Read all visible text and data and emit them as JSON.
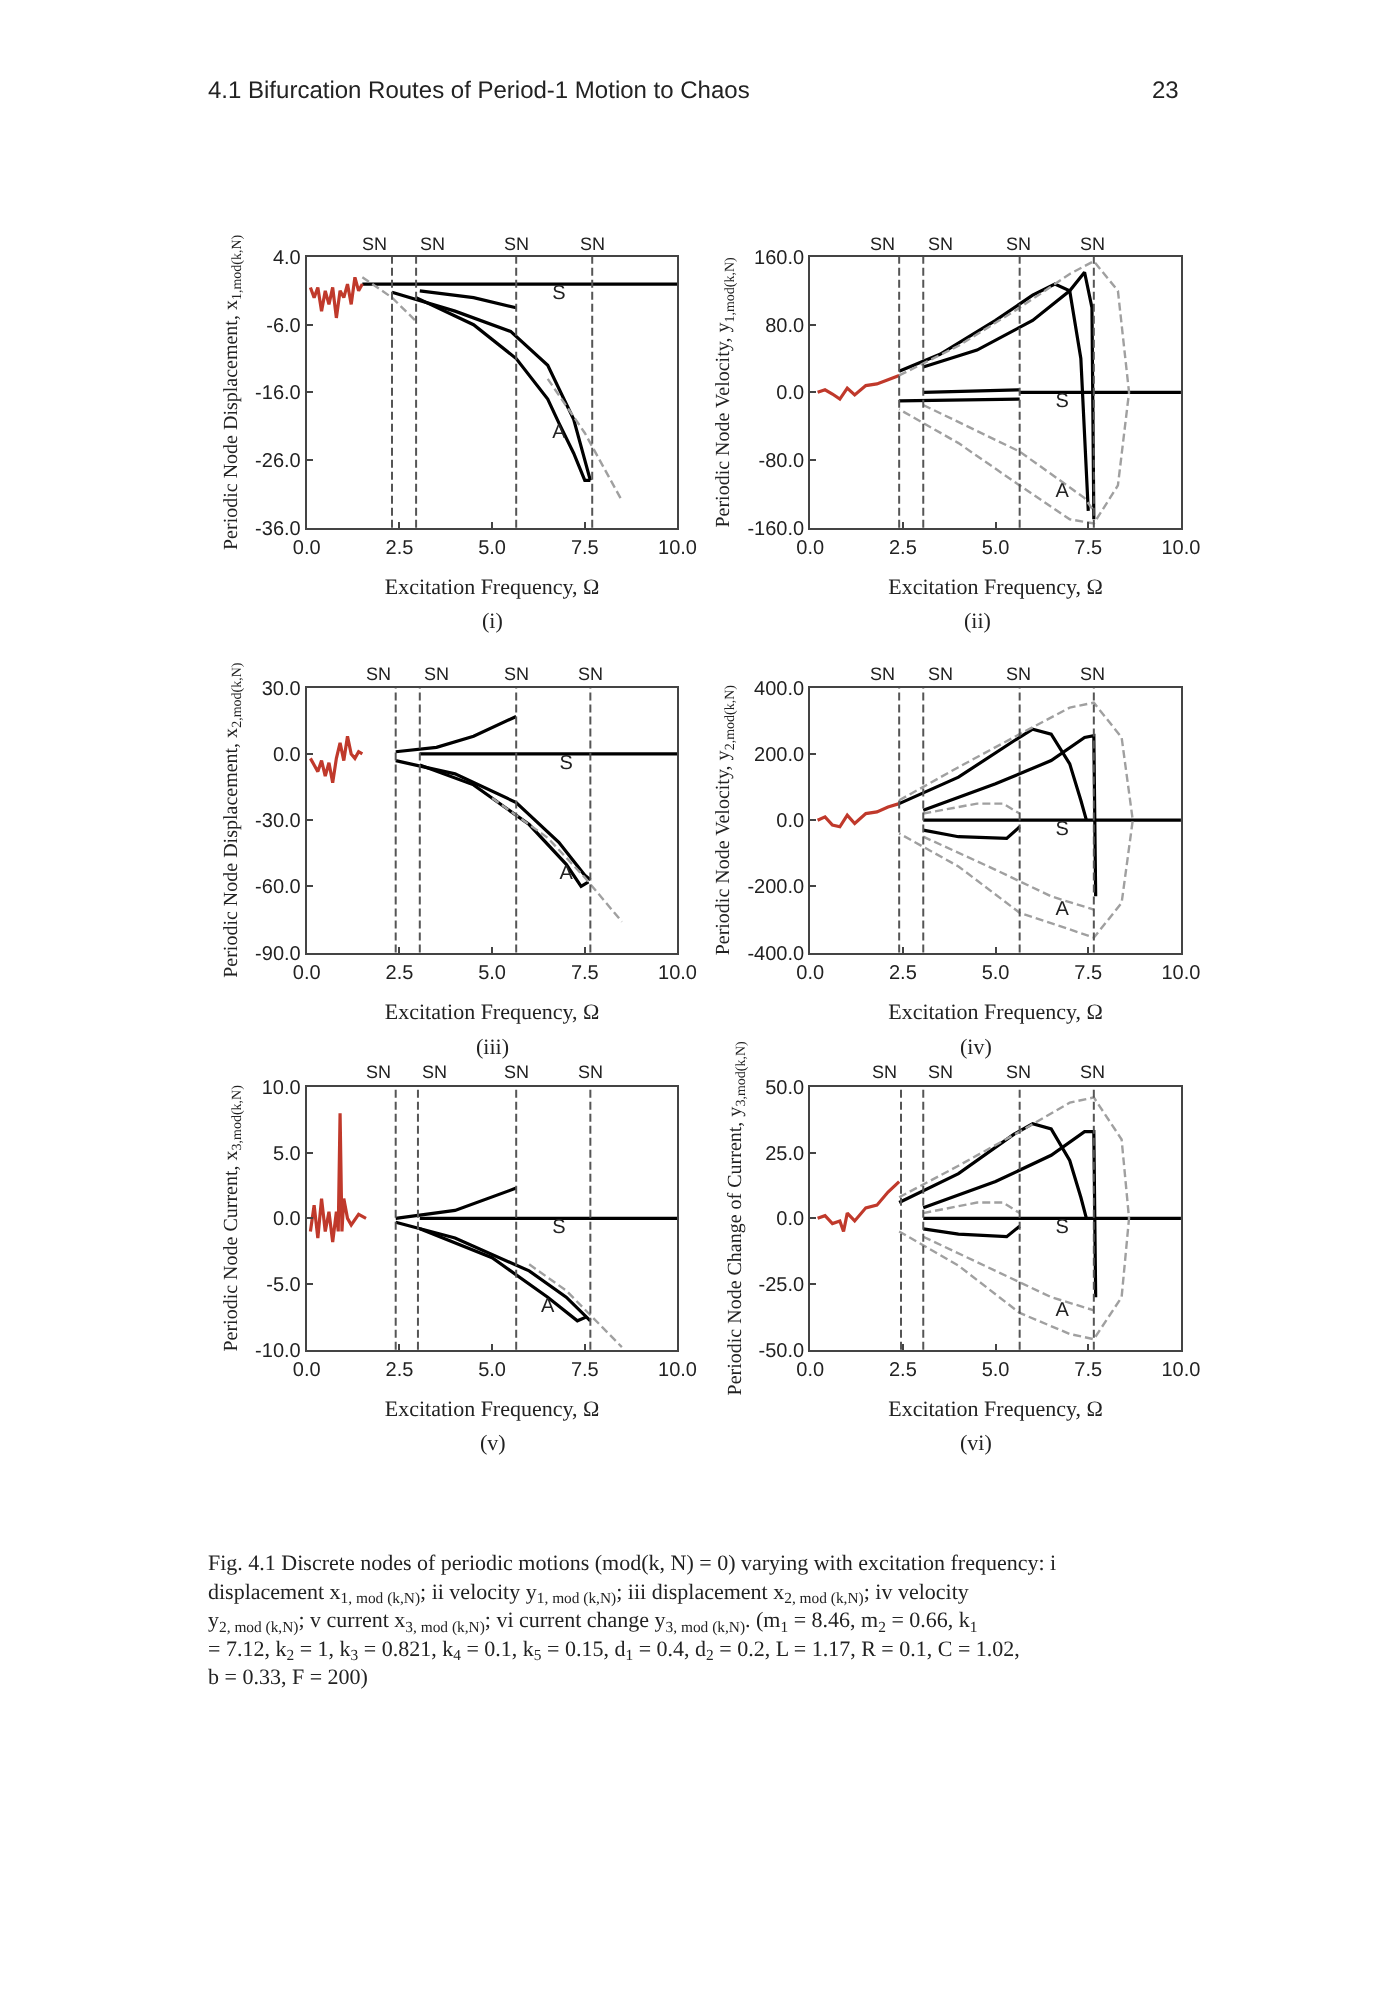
{
  "chart_data": [
    {
      "type": "line",
      "title": null,
      "subtitle": "(i)",
      "xlabel": "Excitation Frequency, Ω",
      "ylabel": "Periodic Node Displacement, x$_{1,mod(k,N)}$",
      "xlim": [
        0,
        10
      ],
      "xticks": [
        {
          "value": 0,
          "label": "0.0"
        },
        {
          "value": 2.5,
          "label": "2.5"
        },
        {
          "value": 5,
          "label": "5.0"
        },
        {
          "value": 7.5,
          "label": "7.5"
        },
        {
          "value": 10,
          "label": "10.0"
        }
      ],
      "ylim": [
        -36,
        4
      ],
      "yticks": [
        {
          "value": -36,
          "label": "-36.0"
        },
        {
          "value": -26,
          "label": "-26.0"
        },
        {
          "value": -16,
          "label": "-16.0"
        },
        {
          "value": -6,
          "label": "-6.0"
        },
        {
          "value": 4,
          "label": "4.0"
        }
      ],
      "series": [
        {
          "color": "#000000",
          "line_style": "solid",
          "x": [
            1.5,
            6.8,
            10,
            null,
            3.05,
            4.5,
            5.65,
            null,
            2.3,
            4,
            5.5,
            6.5,
            7.2,
            7.65,
            null,
            2.95,
            4.5,
            5.65,
            6.5,
            6.8,
            7.2,
            7.5,
            7.65
          ],
          "values": [
            0,
            0,
            0,
            null,
            -1,
            -2,
            -3.5,
            null,
            -1.2,
            -4,
            -7,
            -12,
            -20,
            -29,
            null,
            -2,
            -6,
            -11,
            -17,
            -20.5,
            -25,
            -29,
            -29
          ]
        },
        {
          "color": "#a0a0a0",
          "line_style": "dashed",
          "x": [
            1.5,
            2.3,
            2.95,
            null,
            6.5,
            7.5,
            8.5
          ],
          "values": [
            1,
            -2,
            -5.5,
            null,
            -14,
            -22,
            -32
          ]
        },
        {
          "color": "#c0392b",
          "line_style": "solid",
          "x": [
            0.1,
            0.2,
            0.3,
            0.4,
            0.5,
            0.6,
            0.7,
            0.8,
            0.9,
            1.0,
            1.1,
            1.2,
            1.3,
            1.4,
            1.5
          ],
          "values": [
            -0.5,
            -2,
            -0.5,
            -4,
            -1,
            -3,
            -0.5,
            -5,
            -1,
            -2,
            0,
            -3,
            1,
            -1,
            0
          ]
        }
      ],
      "ref_lines": [
        {
          "axis": "x",
          "value": 2.3,
          "label": "SN",
          "color": "#555555",
          "line_style": "dashed"
        },
        {
          "axis": "x",
          "value": 2.95,
          "label": "SN",
          "color": "#555555",
          "line_style": "dashed"
        },
        {
          "axis": "x",
          "value": 5.65,
          "label": "SN",
          "color": "#555555",
          "line_style": "dashed"
        },
        {
          "axis": "x",
          "value": 7.7,
          "label": "SN",
          "color": "#555555",
          "line_style": "dashed"
        }
      ],
      "annotations": [
        "4.1 Bifurcation Routes of Period-1 Motion to Chaos",
        "23",
        {
          "text": "S",
          "x": 6.8,
          "y": 0
        },
        {
          "text": "A",
          "x": 6.8,
          "y": -20.5
        }
      ]
    },
    {
      "type": "line",
      "title": null,
      "subtitle": "(ii)",
      "xlabel": "Excitation Frequency, Ω",
      "ylabel": "Periodic Node Velocity, y$_{1,mod(k,N)}$",
      "xlim": [
        0,
        10
      ],
      "xticks": [
        {
          "value": 0,
          "label": "0.0"
        },
        {
          "value": 2.5,
          "label": "2.5"
        },
        {
          "value": 5,
          "label": "5.0"
        },
        {
          "value": 7.5,
          "label": "7.5"
        },
        {
          "value": 10,
          "label": "10.0"
        }
      ],
      "ylim": [
        -160,
        160
      ],
      "yticks": [
        {
          "value": -160,
          "label": "-160.0"
        },
        {
          "value": -80,
          "label": "-80.0"
        },
        {
          "value": 0,
          "label": "0.0"
        },
        {
          "value": 80,
          "label": "80.0"
        },
        {
          "value": 160,
          "label": "160.0"
        }
      ],
      "series": [
        {
          "color": "#000000",
          "line_style": "solid",
          "x": [
            2.4,
            3.5,
            5.0,
            6.0,
            6.6,
            7.0,
            7.3,
            7.5,
            null,
            3.05,
            4.5,
            6.0,
            7.0,
            7.4,
            7.6,
            7.65,
            null,
            3.05,
            5.65,
            null,
            2.4,
            5.65,
            null,
            5.65,
            6.8,
            10
          ],
          "values": [
            25,
            45,
            85,
            115,
            128,
            120,
            40,
            -140,
            null,
            30,
            50,
            85,
            120,
            142,
            100,
            -150,
            null,
            0,
            3,
            null,
            -10,
            -8,
            null,
            0,
            0,
            0
          ]
        },
        {
          "color": "#a0a0a0",
          "line_style": "dashed",
          "x": [
            2.4,
            4,
            5.65,
            7,
            7.65,
            8.3,
            8.6,
            8.3,
            7.65,
            7,
            5.65,
            4,
            2.4,
            null,
            3.05,
            5.65,
            6.8,
            7.4,
            7.65
          ],
          "values": [
            20,
            55,
            100,
            140,
            155,
            120,
            0,
            -110,
            -155,
            -150,
            -110,
            -60,
            -20,
            null,
            -15,
            -70,
            -106,
            -125,
            -140
          ]
        },
        {
          "color": "#c0392b",
          "line_style": "solid",
          "x": [
            0.2,
            0.4,
            0.6,
            0.8,
            1.0,
            1.2,
            1.5,
            1.8,
            2.1,
            2.4
          ],
          "values": [
            0,
            3,
            -2,
            -8,
            5,
            -3,
            8,
            10,
            15,
            20
          ]
        }
      ],
      "ref_lines": [
        {
          "axis": "x",
          "value": 2.4,
          "label": "SN",
          "color": "#555555",
          "line_style": "dashed"
        },
        {
          "axis": "x",
          "value": 3.05,
          "label": "SN",
          "color": "#555555",
          "line_style": "dashed"
        },
        {
          "axis": "x",
          "value": 5.65,
          "label": "SN",
          "color": "#555555",
          "line_style": "dashed"
        },
        {
          "axis": "x",
          "value": 7.65,
          "label": "SN",
          "color": "#555555",
          "line_style": "dashed"
        }
      ],
      "annotations": [
        {
          "text": "S",
          "x": 6.8,
          "y": 0
        },
        {
          "text": "A",
          "x": 6.8,
          "y": -106
        }
      ]
    },
    {
      "type": "line",
      "title": null,
      "subtitle": "(iii)",
      "xlabel": "Excitation Frequency, Ω",
      "ylabel": "Periodic Node Displacement, x$_{2,mod(k,N)}$",
      "xlim": [
        0,
        10
      ],
      "xticks": [
        {
          "value": 0,
          "label": "0.0"
        },
        {
          "value": 2.5,
          "label": "2.5"
        },
        {
          "value": 5,
          "label": "5.0"
        },
        {
          "value": 7.5,
          "label": "7.5"
        },
        {
          "value": 10,
          "label": "10.0"
        }
      ],
      "ylim": [
        -90,
        30
      ],
      "yticks": [
        {
          "value": -90,
          "label": "-90.0"
        },
        {
          "value": -60,
          "label": "-60.0"
        },
        {
          "value": -30,
          "label": "-30.0"
        },
        {
          "value": 0,
          "label": "0.0"
        },
        {
          "value": 30,
          "label": "30.0"
        }
      ],
      "series": [
        {
          "color": "#000000",
          "line_style": "solid",
          "x": [
            2.4,
            3.5,
            4.5,
            5.65,
            null,
            3.05,
            7.0,
            10,
            null,
            2.4,
            4,
            5.65,
            6.8,
            7.5,
            7.65,
            null,
            3.05,
            4.5,
            6,
            7,
            7.4,
            7.6
          ],
          "values": [
            1,
            3,
            8,
            17,
            null,
            0,
            0,
            0,
            null,
            -3,
            -9,
            -22,
            -40,
            -55,
            -57,
            null,
            -5,
            -14,
            -32,
            -50,
            -60,
            -58
          ]
        },
        {
          "color": "#a0a0a0",
          "line_style": "dashed",
          "x": [
            5,
            6.5,
            7.5,
            8.5
          ],
          "values": [
            -20,
            -38,
            -56,
            -76
          ]
        },
        {
          "color": "#c0392b",
          "line_style": "solid",
          "x": [
            0.1,
            0.2,
            0.3,
            0.4,
            0.5,
            0.6,
            0.7,
            0.8,
            0.9,
            1.0,
            1.1,
            1.2,
            1.3,
            1.4,
            1.5
          ],
          "values": [
            -2,
            -5,
            -8,
            -3,
            -10,
            -4,
            -13,
            -2,
            5,
            -3,
            8,
            0,
            -2,
            1,
            0
          ]
        }
      ],
      "ref_lines": [
        {
          "axis": "x",
          "value": 2.4,
          "label": "SN",
          "color": "#555555",
          "line_style": "dashed"
        },
        {
          "axis": "x",
          "value": 3.05,
          "label": "SN",
          "color": "#555555",
          "line_style": "dashed"
        },
        {
          "axis": "x",
          "value": 5.65,
          "label": "SN",
          "color": "#555555",
          "line_style": "dashed"
        },
        {
          "axis": "x",
          "value": 7.65,
          "label": "SN",
          "color": "#555555",
          "line_style": "dashed"
        }
      ],
      "annotations": [
        {
          "text": "S",
          "x": 7.0,
          "y": 0
        },
        {
          "text": "A",
          "x": 7.0,
          "y": -50
        }
      ]
    },
    {
      "type": "line",
      "title": null,
      "subtitle": "(iv)",
      "xlabel": "Excitation Frequency, Ω",
      "ylabel": "Periodic Node Velocity, y$_{2,mod(k,N)}$",
      "xlim": [
        0,
        10
      ],
      "xticks": [
        {
          "value": 0,
          "label": "0.0"
        },
        {
          "value": 2.5,
          "label": "2.5"
        },
        {
          "value": 5,
          "label": "5.0"
        },
        {
          "value": 7.5,
          "label": "7.5"
        },
        {
          "value": 10,
          "label": "10.0"
        }
      ],
      "ylim": [
        -400,
        400
      ],
      "yticks": [
        {
          "value": -400,
          "label": "-400.0"
        },
        {
          "value": -200,
          "label": "-200.0"
        },
        {
          "value": 0,
          "label": "0.0"
        },
        {
          "value": 200,
          "label": "200.0"
        },
        {
          "value": 400,
          "label": "400.0"
        }
      ],
      "series": [
        {
          "color": "#000000",
          "line_style": "solid",
          "x": [
            2.4,
            4,
            5.5,
            6.0,
            6.5,
            7.0,
            7.3,
            7.45,
            null,
            3.05,
            5,
            6.5,
            7.4,
            7.65,
            7.7,
            null,
            3.05,
            4,
            5.3,
            5.65,
            null,
            3.05,
            6.8,
            10
          ],
          "values": [
            50,
            130,
            240,
            275,
            260,
            170,
            60,
            0,
            null,
            30,
            110,
            180,
            250,
            255,
            -230,
            null,
            -30,
            -50,
            -55,
            -20,
            null,
            0,
            0,
            0
          ]
        },
        {
          "color": "#a0a0a0",
          "line_style": "dashed",
          "x": [
            2.4,
            4,
            5.65,
            7,
            7.65,
            8.4,
            8.7,
            8.4,
            7.65,
            7,
            5.65,
            4,
            2.4,
            null,
            3.05,
            4.5,
            5.2,
            5.65,
            null,
            3.05,
            5,
            6.5,
            6.8,
            7.65
          ],
          "values": [
            60,
            160,
            260,
            340,
            355,
            250,
            0,
            -250,
            -355,
            -330,
            -280,
            -140,
            -40,
            null,
            20,
            50,
            50,
            20,
            null,
            -50,
            -150,
            -230,
            -241,
            -270
          ]
        },
        {
          "color": "#c0392b",
          "line_style": "solid",
          "x": [
            0.2,
            0.4,
            0.6,
            0.8,
            1.0,
            1.2,
            1.5,
            1.8,
            2.1,
            2.4
          ],
          "values": [
            0,
            10,
            -15,
            -20,
            15,
            -10,
            20,
            25,
            40,
            50
          ]
        }
      ],
      "ref_lines": [
        {
          "axis": "x",
          "value": 2.4,
          "label": "SN",
          "color": "#555555",
          "line_style": "dashed"
        },
        {
          "axis": "x",
          "value": 3.05,
          "label": "SN",
          "color": "#555555",
          "line_style": "dashed"
        },
        {
          "axis": "x",
          "value": 5.65,
          "label": "SN",
          "color": "#555555",
          "line_style": "dashed"
        },
        {
          "axis": "x",
          "value": 7.65,
          "label": "SN",
          "color": "#555555",
          "line_style": "dashed"
        }
      ],
      "annotations": [
        {
          "text": "S",
          "x": 6.8,
          "y": 0
        },
        {
          "text": "A",
          "x": 6.8,
          "y": -241
        }
      ]
    },
    {
      "type": "line",
      "title": null,
      "subtitle": "(v)",
      "xlabel": "Excitation Frequency, Ω",
      "ylabel": "Periodic Node Current, x$_{3,mod(k,N)}$",
      "xlim": [
        0,
        10
      ],
      "xticks": [
        {
          "value": 0,
          "label": "0.0"
        },
        {
          "value": 2.5,
          "label": "2.5"
        },
        {
          "value": 5,
          "label": "5.0"
        },
        {
          "value": 7.5,
          "label": "7.5"
        },
        {
          "value": 10,
          "label": "10.0"
        }
      ],
      "ylim": [
        -10,
        10
      ],
      "yticks": [
        {
          "value": -10,
          "label": "-10.0"
        },
        {
          "value": -5,
          "label": "-5.0"
        },
        {
          "value": 0,
          "label": "0.0"
        },
        {
          "value": 5,
          "label": "5.0"
        },
        {
          "value": 10,
          "label": "10.0"
        }
      ],
      "series": [
        {
          "color": "#000000",
          "line_style": "solid",
          "x": [
            2.4,
            4,
            5.65,
            null,
            3.05,
            6.8,
            10,
            null,
            2.4,
            4,
            6,
            7,
            7.65,
            null,
            3.05,
            5,
            6.5,
            7.3,
            7.55
          ],
          "values": [
            0,
            0.6,
            2.3,
            null,
            0,
            0,
            0,
            null,
            -0.3,
            -1.5,
            -4,
            -6,
            -7.8,
            null,
            -0.8,
            -3,
            -6,
            -7.8,
            -7.5
          ]
        },
        {
          "color": "#a0a0a0",
          "line_style": "dashed",
          "x": [
            6,
            7,
            8.5
          ],
          "values": [
            -3.5,
            -5.5,
            -9.8
          ]
        },
        {
          "color": "#c0392b",
          "line_style": "solid",
          "x": [
            0.1,
            0.2,
            0.3,
            0.4,
            0.5,
            0.6,
            0.7,
            0.8,
            0.85,
            0.9,
            0.95,
            1.0,
            1.1,
            1.2,
            1.4,
            1.6
          ],
          "values": [
            -1,
            1,
            -1.5,
            1.5,
            -1,
            0.5,
            -1.8,
            0.5,
            -1,
            8,
            -1,
            1.5,
            0,
            -0.5,
            0.3,
            0
          ]
        }
      ],
      "ref_lines": [
        {
          "axis": "x",
          "value": 2.4,
          "label": "SN",
          "color": "#555555",
          "line_style": "dashed"
        },
        {
          "axis": "x",
          "value": 3.0,
          "label": "SN",
          "color": "#555555",
          "line_style": "dashed"
        },
        {
          "axis": "x",
          "value": 5.65,
          "label": "SN",
          "color": "#555555",
          "line_style": "dashed"
        },
        {
          "axis": "x",
          "value": 7.65,
          "label": "SN",
          "color": "#555555",
          "line_style": "dashed"
        }
      ],
      "annotations": [
        {
          "text": "S",
          "x": 6.8,
          "y": 0
        },
        {
          "text": "A",
          "x": 6.5,
          "y": -6
        }
      ]
    },
    {
      "type": "line",
      "title": null,
      "subtitle": "(vi)",
      "xlabel": "Excitation Frequency, Ω",
      "ylabel": "Periodic Node Change of Current, y$_{3,mod(k,N)}$",
      "xlim": [
        0,
        10
      ],
      "xticks": [
        {
          "value": 0,
          "label": "0.0"
        },
        {
          "value": 2.5,
          "label": "2.5"
        },
        {
          "value": 5,
          "label": "5.0"
        },
        {
          "value": 7.5,
          "label": "7.5"
        },
        {
          "value": 10,
          "label": "10.0"
        }
      ],
      "ylim": [
        -50,
        50
      ],
      "yticks": [
        {
          "value": -50,
          "label": "-50.0"
        },
        {
          "value": -25,
          "label": "-25.0"
        },
        {
          "value": 0,
          "label": "0.0"
        },
        {
          "value": 25,
          "label": "25.0"
        },
        {
          "value": 50,
          "label": "50.0"
        }
      ],
      "series": [
        {
          "color": "#000000",
          "line_style": "solid",
          "x": [
            2.4,
            4,
            5.5,
            6.0,
            6.5,
            7.0,
            7.3,
            7.45,
            null,
            3.05,
            5,
            6.5,
            7.4,
            7.65,
            7.7,
            null,
            3.05,
            4,
            5.3,
            5.65,
            null,
            3.05,
            6.8,
            10
          ],
          "values": [
            6,
            17,
            32,
            36,
            34,
            22,
            8,
            0,
            null,
            4,
            14,
            24,
            33,
            33,
            -30,
            null,
            -4,
            -6,
            -7,
            -3,
            null,
            0,
            0,
            0
          ]
        },
        {
          "color": "#a0a0a0",
          "line_style": "dashed",
          "x": [
            2.4,
            4,
            5.65,
            7,
            7.65,
            8.4,
            8.6,
            8.4,
            7.65,
            7,
            5.65,
            4,
            2.4,
            null,
            3.05,
            4.5,
            5.2,
            5.65,
            null,
            3.05,
            5,
            6.5,
            6.8,
            7.65
          ],
          "values": [
            8,
            20,
            33,
            44,
            46,
            30,
            0,
            -30,
            -46,
            -44,
            -36,
            -18,
            -5,
            null,
            2,
            6,
            6,
            2,
            null,
            -7,
            -20,
            -30,
            -31.3,
            -35
          ]
        },
        {
          "color": "#c0392b",
          "line_style": "solid",
          "x": [
            0.2,
            0.4,
            0.6,
            0.8,
            0.9,
            1.0,
            1.2,
            1.5,
            1.8,
            2.1,
            2.4
          ],
          "values": [
            0,
            1,
            -2,
            -1,
            -5,
            2,
            -1,
            4,
            5,
            10,
            14
          ]
        }
      ],
      "ref_lines": [
        {
          "axis": "x",
          "value": 2.45,
          "label": "SN",
          "color": "#555555",
          "line_style": "dashed"
        },
        {
          "axis": "x",
          "value": 3.05,
          "label": "SN",
          "color": "#555555",
          "line_style": "dashed"
        },
        {
          "axis": "x",
          "value": 5.65,
          "label": "SN",
          "color": "#555555",
          "line_style": "dashed"
        },
        {
          "axis": "x",
          "value": 7.65,
          "label": "SN",
          "color": "#555555",
          "line_style": "dashed"
        }
      ],
      "annotations": [
        {
          "text": "S",
          "x": 6.8,
          "y": 0
        },
        {
          "text": "A",
          "x": 6.8,
          "y": -31.3
        },
        "Fig. 4.1 Discrete nodes of periodic motions (mod(k, N) = 0) varying with excitation frequency: i displacement x$_{1, mod (k,N)}$; ii velocity y$_{1, mod (k,N)}$; iii displacement x$_{2, mod (k,N)}$; iv velocity y$_{2, mod (k,N)}$; v current x$_{3, mod (k,N)}$; vi current change y$_{3, mod (k,N)}$. (m$_{1}$ = 8.46, m$_{2}$ = 0.66, k$_{1}$ = 7.12, k$_{2}$ = 1, k$_{3}$ = 0.821, k$_{4}$ = 0.1, k$_{5}$ = 0.15, d$_{1}$ = 0.4, d$_{2}$ = 0.2, L = 1.17, R = 0.1, C = 1.02, b = 0.33, F = 200)"
      ]
    }
  ]
}
